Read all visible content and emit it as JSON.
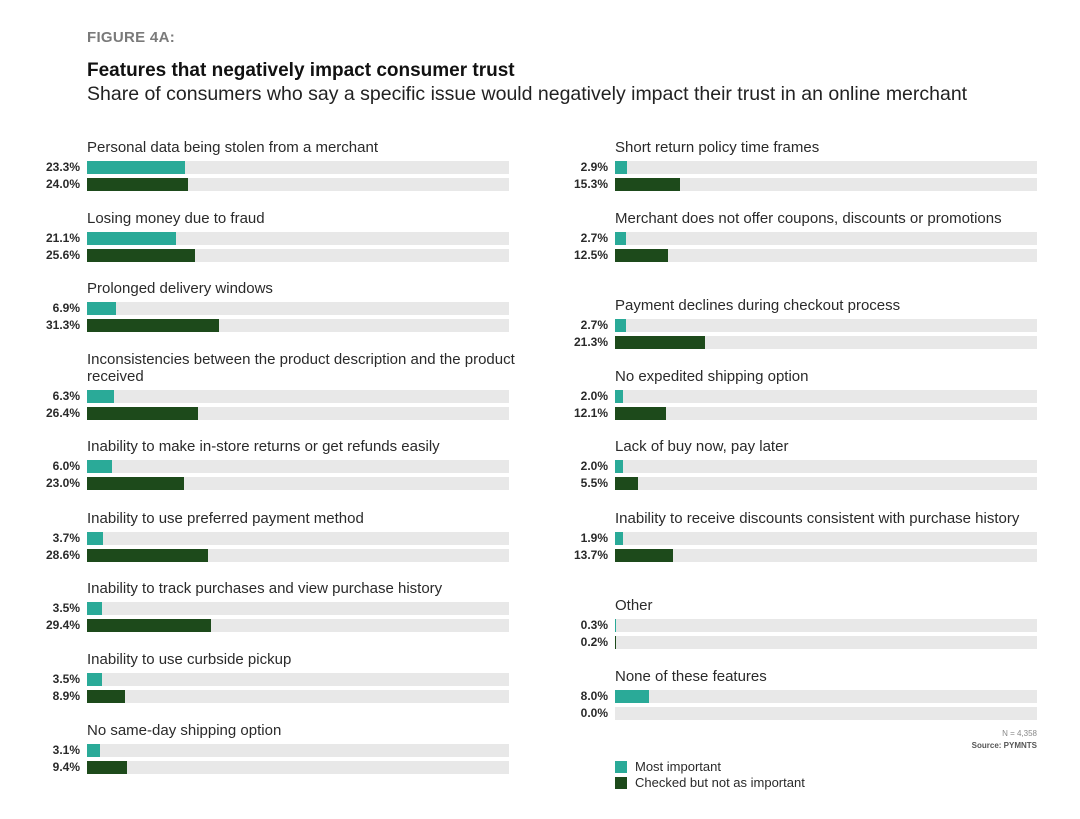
{
  "chart_data": {
    "type": "bar",
    "orientation": "horizontal",
    "figure_label": "FIGURE 4A:",
    "title": "Features that negatively impact consumer trust",
    "subtitle": "Share of consumers who say a specific issue would negatively impact their trust in an online merchant",
    "xlim": [
      0,
      100
    ],
    "grid": false,
    "legend_position": "bottom-right",
    "series": [
      {
        "name": "Most important",
        "color": "#2aaa98"
      },
      {
        "name": "Checked but not as important",
        "color": "#1d4a1b"
      }
    ],
    "categories": [
      {
        "label": "Personal data being stolen from a merchant",
        "most": 23.3,
        "most_text": "23.3%",
        "checked": 24.0,
        "checked_text": "24.0%"
      },
      {
        "label": "Losing money due to fraud",
        "most": 21.1,
        "most_text": "21.1%",
        "checked": 25.6,
        "checked_text": "25.6%"
      },
      {
        "label": "Prolonged delivery windows",
        "most": 6.9,
        "most_text": "6.9%",
        "checked": 31.3,
        "checked_text": "31.3%"
      },
      {
        "label": "Inconsistencies between the product description and the product received",
        "most": 6.3,
        "most_text": "6.3%",
        "checked": 26.4,
        "checked_text": "26.4%"
      },
      {
        "label": "Inability to make in-store returns or get refunds easily",
        "most": 6.0,
        "most_text": "6.0%",
        "checked": 23.0,
        "checked_text": "23.0%"
      },
      {
        "label": "Inability to use preferred payment method",
        "most": 3.7,
        "most_text": "3.7%",
        "checked": 28.6,
        "checked_text": "28.6%"
      },
      {
        "label": "Inability to track purchases and view purchase history",
        "most": 3.5,
        "most_text": "3.5%",
        "checked": 29.4,
        "checked_text": "29.4%"
      },
      {
        "label": "Inability to use curbside pickup",
        "most": 3.5,
        "most_text": "3.5%",
        "checked": 8.9,
        "checked_text": "8.9%"
      },
      {
        "label": "No same-day shipping option",
        "most": 3.1,
        "most_text": "3.1%",
        "checked": 9.4,
        "checked_text": "9.4%"
      },
      {
        "label": "Short return policy time frames",
        "most": 2.9,
        "most_text": "2.9%",
        "checked": 15.3,
        "checked_text": "15.3%"
      },
      {
        "label": "Merchant does not offer coupons, discounts or promotions",
        "most": 2.7,
        "most_text": "2.7%",
        "checked": 12.5,
        "checked_text": "12.5%"
      },
      {
        "label": "Payment declines during checkout process",
        "most": 2.7,
        "most_text": "2.7%",
        "checked": 21.3,
        "checked_text": "21.3%"
      },
      {
        "label": "No expedited shipping option",
        "most": 2.0,
        "most_text": "2.0%",
        "checked": 12.1,
        "checked_text": "12.1%"
      },
      {
        "label": "Lack of buy now, pay later",
        "most": 2.0,
        "most_text": "2.0%",
        "checked": 5.5,
        "checked_text": "5.5%"
      },
      {
        "label": "Inability to receive discounts consistent with purchase history",
        "most": 1.9,
        "most_text": "1.9%",
        "checked": 13.7,
        "checked_text": "13.7%"
      },
      {
        "label": "Other",
        "most": 0.3,
        "most_text": "0.3%",
        "checked": 0.2,
        "checked_text": "0.2%"
      },
      {
        "label": "None of these features",
        "most": 8.0,
        "most_text": "8.0%",
        "checked": 0.0,
        "checked_text": "0.0%"
      }
    ],
    "notes": {
      "sample_size": "N = 4,358",
      "source": "Source: PYMNTS"
    }
  }
}
